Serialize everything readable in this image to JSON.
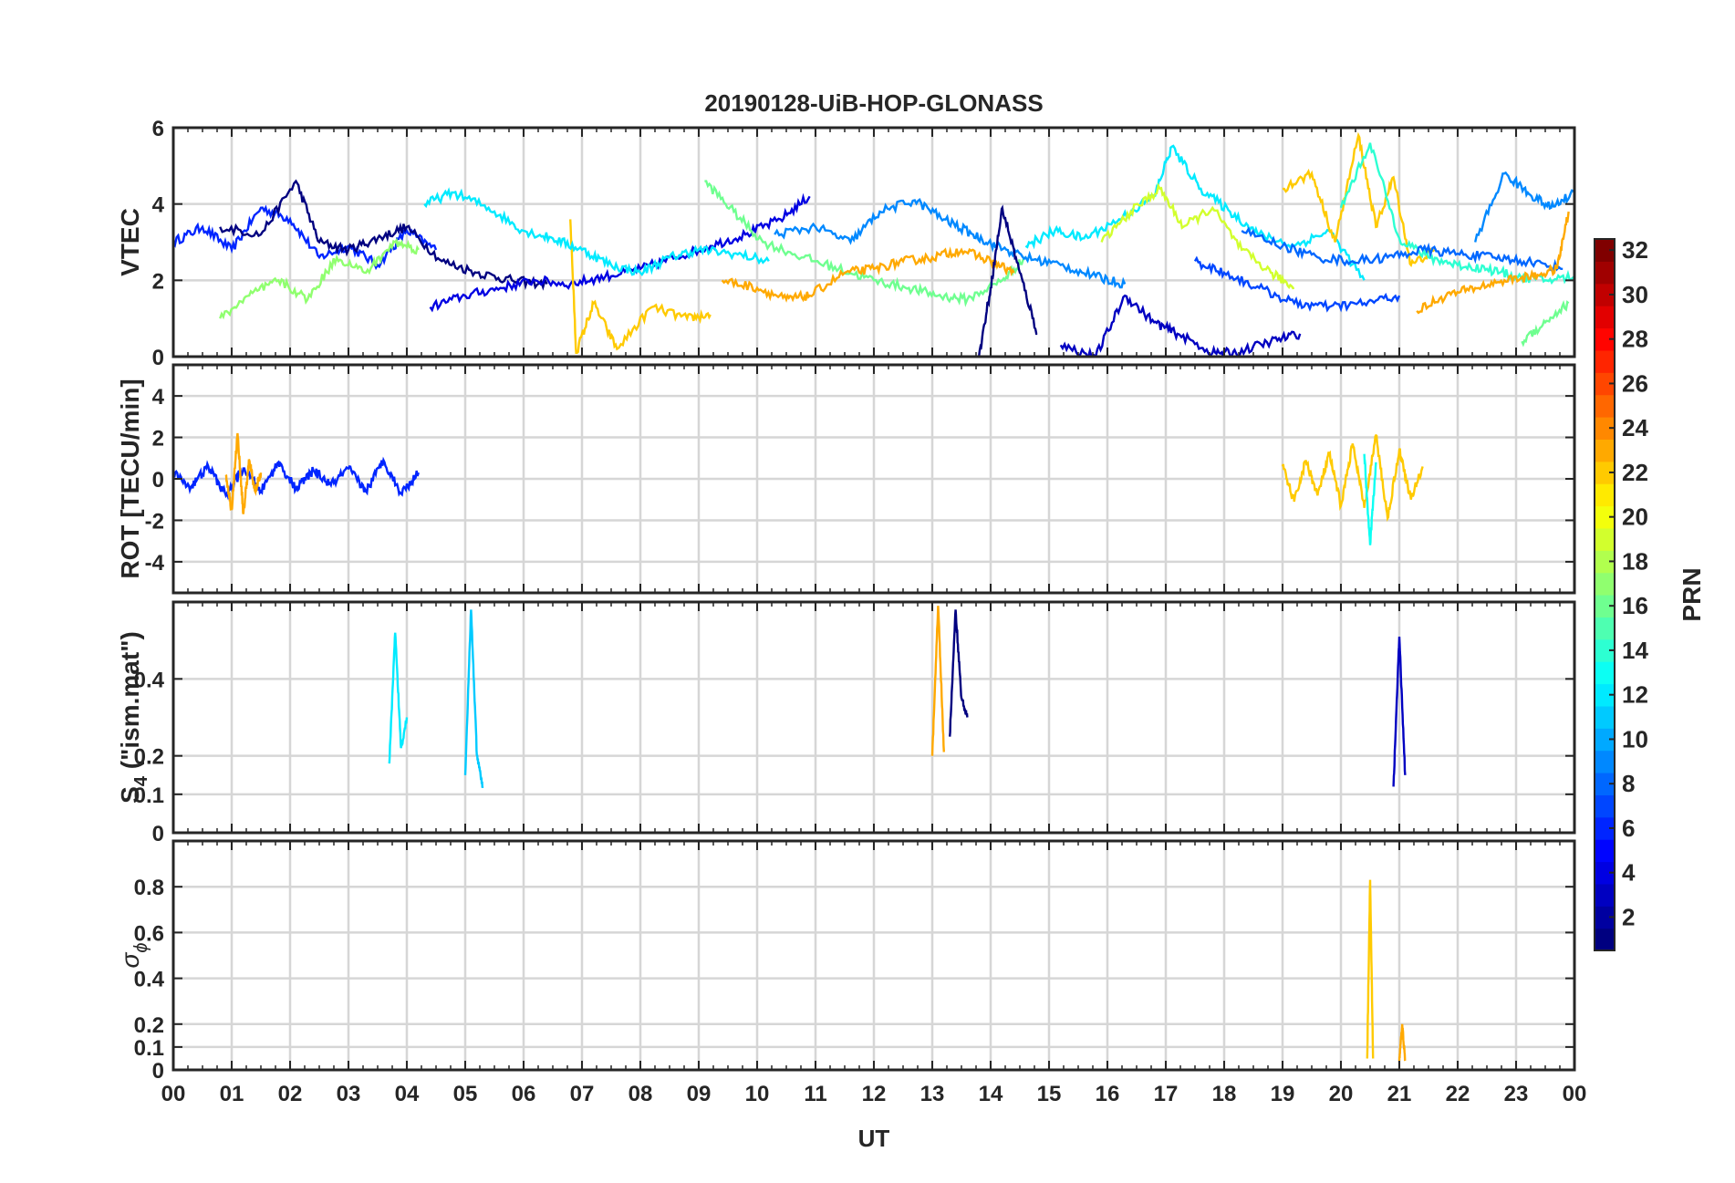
{
  "chart_data": {
    "type": "line",
    "title": "20190128-UiB-HOP-GLONASS",
    "xlabel": "UT",
    "x_range_hours": [
      0,
      24
    ],
    "x_tick_labels": [
      "00",
      "01",
      "02",
      "03",
      "04",
      "05",
      "06",
      "07",
      "08",
      "09",
      "10",
      "11",
      "12",
      "13",
      "14",
      "15",
      "16",
      "17",
      "18",
      "19",
      "20",
      "21",
      "22",
      "23",
      "00"
    ],
    "grid": true,
    "colorbar": {
      "label": "PRN",
      "colormap": "jet",
      "range": [
        1,
        32
      ],
      "ticks": [
        "2",
        "4",
        "6",
        "8",
        "10",
        "12",
        "14",
        "16",
        "18",
        "20",
        "22",
        "24",
        "26",
        "28",
        "30",
        "32"
      ]
    },
    "panels": [
      {
        "key": "vtec",
        "ylabel_main": "VTEC",
        "ylim": [
          0,
          6
        ],
        "ticks": [
          0,
          2,
          4,
          6
        ],
        "tick_labels": [
          "0",
          "2",
          "4",
          "6"
        ],
        "series": [
          {
            "prn": 6,
            "x": [
              0,
              0.5,
              1,
              1.5,
              2,
              2.5,
              3,
              3.5,
              4,
              4.5
            ],
            "y": [
              3.0,
              3.4,
              2.8,
              3.9,
              3.6,
              2.6,
              2.9,
              2.4,
              3.3,
              2.8
            ]
          },
          {
            "prn": 1,
            "x": [
              0.8,
              1.5,
              2.1,
              2.5,
              3,
              3.5,
              4,
              4.6,
              5.2,
              5.8,
              6.4
            ],
            "y": [
              3.4,
              3.2,
              4.6,
              3.0,
              2.8,
              3.1,
              3.4,
              2.5,
              2.2,
              2.0,
              1.9
            ]
          },
          {
            "prn": 4,
            "x": [
              4.4,
              5,
              5.6,
              6.2,
              6.8,
              7.4,
              8,
              8.6,
              9.2,
              9.8,
              10.4,
              10.9
            ],
            "y": [
              1.3,
              1.6,
              1.8,
              2.0,
              1.9,
              2.1,
              2.3,
              2.6,
              2.9,
              3.2,
              3.6,
              4.2
            ]
          },
          {
            "prn": 22,
            "x": [
              6.8,
              6.9,
              7.2,
              7.6,
              8.2,
              8.8,
              9.2
            ],
            "y": [
              3.6,
              0.1,
              1.4,
              0.2,
              1.3,
              1.0,
              1.1
            ]
          },
          {
            "prn": 12,
            "x": [
              4.3,
              4.8,
              5.4,
              6,
              6.5,
              7,
              7.5,
              8,
              8.5,
              9,
              9.6,
              10.2
            ],
            "y": [
              4.0,
              4.3,
              3.9,
              3.3,
              3.1,
              2.8,
              2.4,
              2.2,
              2.6,
              2.8,
              2.7,
              2.5
            ]
          },
          {
            "prn": 16,
            "x": [
              9.1,
              9.6,
              10.1,
              10.8,
              11.4,
              12,
              12.6,
              13.1,
              13.6,
              14.2,
              14.6
            ],
            "y": [
              4.6,
              3.8,
              3.0,
              2.6,
              2.3,
              2.0,
              1.8,
              1.6,
              1.5,
              2.0,
              2.6
            ]
          },
          {
            "prn": 23,
            "x": [
              9.4,
              10,
              10.5,
              10.9,
              11.5,
              12,
              12.5,
              13,
              13.5,
              14,
              14.4
            ],
            "y": [
              2.0,
              1.8,
              1.5,
              1.6,
              2.2,
              2.3,
              2.5,
              2.6,
              2.8,
              2.5,
              2.2
            ]
          },
          {
            "prn": 9,
            "x": [
              10.3,
              11,
              11.6,
              12.1,
              12.7,
              13.2,
              13.7,
              14.1,
              14.6,
              15.2,
              15.8,
              16.3
            ],
            "y": [
              3.2,
              3.4,
              3.0,
              3.8,
              4.1,
              3.6,
              3.2,
              2.9,
              2.6,
              2.4,
              2.1,
              1.9
            ]
          },
          {
            "prn": 1,
            "x": [
              13.8,
              14.0,
              14.2,
              14.5,
              14.8
            ],
            "y": [
              0.0,
              1.8,
              3.9,
              2.2,
              0.6
            ]
          },
          {
            "prn": 3,
            "x": [
              15.2,
              15.8,
              16.3,
              16.8,
              17.2,
              17.8,
              18.2,
              18.8,
              19.3
            ],
            "y": [
              0.3,
              0.0,
              1.6,
              0.9,
              0.6,
              0.1,
              0.1,
              0.4,
              0.6
            ]
          },
          {
            "prn": 12,
            "x": [
              14.6,
              15.1,
              15.6,
              16.2,
              16.8,
              17.1,
              17.6,
              18.1,
              18.6,
              19.2,
              19.8,
              20.4
            ],
            "y": [
              2.9,
              3.3,
              3.1,
              3.6,
              4.2,
              5.5,
              4.4,
              3.8,
              3.2,
              2.9,
              3.3,
              2.0
            ]
          },
          {
            "prn": 19,
            "x": [
              15.9,
              16.4,
              16.9,
              17.3,
              17.8,
              18.3,
              18.8,
              19.2
            ],
            "y": [
              3.0,
              3.8,
              4.4,
              3.4,
              3.9,
              2.8,
              2.2,
              1.8
            ]
          },
          {
            "prn": 22,
            "x": [
              19.0,
              19.5,
              19.9,
              20.3,
              20.6,
              20.9,
              21.2,
              21.6
            ],
            "y": [
              4.4,
              4.8,
              3.0,
              5.8,
              3.4,
              4.7,
              2.4,
              2.8
            ]
          },
          {
            "prn": 14,
            "x": [
              20.0,
              20.5,
              21,
              21.5,
              22,
              22.5,
              23,
              23.5,
              24
            ],
            "y": [
              3.9,
              5.6,
              3.1,
              2.6,
              2.4,
              2.3,
              2.1,
              2.0,
              2.1
            ]
          },
          {
            "prn": 7,
            "x": [
              17.5,
              18,
              18.6,
              19.2,
              19.8,
              20.4,
              21.0
            ],
            "y": [
              2.5,
              2.2,
              1.8,
              1.4,
              1.3,
              1.4,
              1.6
            ]
          },
          {
            "prn": 8,
            "x": [
              18.3,
              19,
              19.6,
              20.2,
              20.8,
              21.4,
              22,
              22.6,
              23.2,
              23.8
            ],
            "y": [
              3.3,
              2.9,
              2.6,
              2.5,
              2.6,
              2.8,
              2.7,
              2.6,
              2.5,
              2.3
            ]
          },
          {
            "prn": 23,
            "x": [
              21.3,
              21.8,
              22.3,
              22.8,
              23.3,
              23.7,
              23.9
            ],
            "y": [
              1.2,
              1.6,
              1.8,
              2.0,
              2.1,
              2.3,
              3.8
            ]
          },
          {
            "prn": 9,
            "x": [
              22.3,
              22.8,
              23.2,
              23.6,
              24
            ],
            "y": [
              3.0,
              4.8,
              4.3,
              3.9,
              4.3
            ]
          },
          {
            "prn": 16,
            "x": [
              23.1,
              23.5,
              23.9
            ],
            "y": [
              0.4,
              0.9,
              1.4
            ]
          },
          {
            "prn": 17,
            "x": [
              0.8,
              1.3,
              1.8,
              2.3,
              2.8,
              3.3,
              3.8,
              4.2
            ],
            "y": [
              1.0,
              1.6,
              2.0,
              1.5,
              2.6,
              2.2,
              3.0,
              2.8
            ]
          }
        ]
      },
      {
        "key": "rot",
        "ylabel_main": "ROT [TECU/min]",
        "ylim": [
          -5.5,
          5.5
        ],
        "ticks": [
          -4,
          -2,
          0,
          2,
          4
        ],
        "tick_labels": [
          "-4",
          "-2",
          "0",
          "2",
          "4"
        ],
        "series": [
          {
            "prn": 6,
            "x": [
              0,
              0.3,
              0.6,
              0.9,
              1.2,
              1.5,
              1.8,
              2.1,
              2.4,
              2.7,
              3.0,
              3.3,
              3.6,
              3.9,
              4.2
            ],
            "y": [
              0.3,
              -0.4,
              0.6,
              -0.8,
              0.5,
              -0.6,
              0.8,
              -0.5,
              0.4,
              -0.3,
              0.5,
              -0.6,
              0.9,
              -0.7,
              0.3
            ]
          },
          {
            "prn": 23,
            "x": [
              0.9,
              1.0,
              1.1,
              1.2,
              1.3,
              1.4,
              1.5
            ],
            "y": [
              0.2,
              -1.5,
              2.2,
              -1.7,
              0.9,
              -0.6,
              0.3
            ]
          },
          {
            "prn": 22,
            "x": [
              19,
              19.2,
              19.4,
              19.6,
              19.8,
              20,
              20.2,
              20.4,
              20.6,
              20.8,
              21,
              21.2,
              21.4
            ],
            "y": [
              0.6,
              -1.1,
              0.9,
              -0.8,
              1.2,
              -1.3,
              1.7,
              -1.4,
              2.1,
              -1.9,
              1.4,
              -1.0,
              0.6
            ]
          },
          {
            "prn": 13,
            "x": [
              20.4,
              20.5,
              20.6
            ],
            "y": [
              1.2,
              -3.2,
              0.8
            ]
          }
        ]
      },
      {
        "key": "s4",
        "ylabel_main": "S",
        "ylabel_sub": "4",
        "ylabel_rest": " (\"ism.mat\")",
        "ylim": [
          0,
          0.6
        ],
        "ticks": [
          0,
          0.1,
          0.2,
          0.4
        ],
        "tick_labels": [
          "0",
          "0.1",
          "0.2",
          "0.4"
        ],
        "series": [
          {
            "prn": 12,
            "x": [
              3.7,
              3.8,
              3.9,
              4.0
            ],
            "y": [
              0.18,
              0.52,
              0.22,
              0.3
            ]
          },
          {
            "prn": 11,
            "x": [
              5.0,
              5.1,
              5.2,
              5.3
            ],
            "y": [
              0.15,
              0.58,
              0.2,
              0.12
            ]
          },
          {
            "prn": 23,
            "x": [
              13.0,
              13.1,
              13.2
            ],
            "y": [
              0.2,
              0.59,
              0.21
            ]
          },
          {
            "prn": 1,
            "x": [
              13.3,
              13.4,
              13.5,
              13.6
            ],
            "y": [
              0.25,
              0.58,
              0.35,
              0.3
            ]
          },
          {
            "prn": 3,
            "x": [
              20.9,
              21.0,
              21.1
            ],
            "y": [
              0.12,
              0.51,
              0.15
            ]
          }
        ]
      },
      {
        "key": "sigma",
        "ylabel_main": "σ",
        "ylabel_sub": "ϕ",
        "ylim": [
          0,
          1
        ],
        "ticks": [
          0,
          0.1,
          0.2,
          0.4,
          0.6,
          0.8
        ],
        "tick_labels": [
          "0",
          "0.1",
          "0.2",
          "0.4",
          "0.6",
          "0.8"
        ],
        "series": [
          {
            "prn": 22,
            "x": [
              20.45,
              20.5,
              20.55
            ],
            "y": [
              0.05,
              0.83,
              0.05
            ]
          },
          {
            "prn": 23,
            "x": [
              21.0,
              21.05,
              21.1
            ],
            "y": [
              0.04,
              0.2,
              0.04
            ]
          }
        ]
      }
    ]
  }
}
